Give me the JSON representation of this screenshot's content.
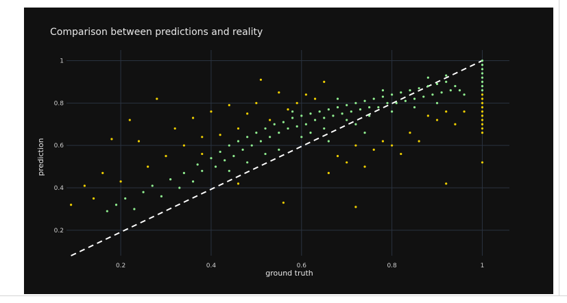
{
  "chart_data": {
    "type": "scatter",
    "title": "Comparison between predictions and reality",
    "xlabel": "ground truth",
    "ylabel": "prediction",
    "xlim": [
      0.08,
      1.06
    ],
    "ylim": [
      0.08,
      1.05
    ],
    "x_ticks": [
      0.2,
      0.4,
      0.6,
      0.8,
      1
    ],
    "y_ticks": [
      0.2,
      0.4,
      0.6,
      0.8,
      1
    ],
    "x_tick_labels": [
      "0.2",
      "0.4",
      "0.6",
      "0.8",
      "1"
    ],
    "y_tick_labels": [
      "0.2",
      "0.4",
      "0.6",
      "0.8",
      "1"
    ],
    "grid": true,
    "background": "#111111",
    "reference_line": {
      "style": "dashed",
      "color": "#ffffff",
      "from": [
        0.09,
        0.08
      ],
      "to": [
        1,
        1
      ]
    },
    "series": [
      {
        "color": "#90ee90",
        "points": [
          [
            0.17,
            0.29
          ],
          [
            0.19,
            0.32
          ],
          [
            0.21,
            0.35
          ],
          [
            0.23,
            0.3
          ],
          [
            0.25,
            0.38
          ],
          [
            0.27,
            0.41
          ],
          [
            0.29,
            0.36
          ],
          [
            0.31,
            0.44
          ],
          [
            0.33,
            0.4
          ],
          [
            0.34,
            0.47
          ],
          [
            0.36,
            0.43
          ],
          [
            0.37,
            0.51
          ],
          [
            0.38,
            0.48
          ],
          [
            0.4,
            0.54
          ],
          [
            0.41,
            0.5
          ],
          [
            0.42,
            0.57
          ],
          [
            0.43,
            0.53
          ],
          [
            0.44,
            0.6
          ],
          [
            0.45,
            0.55
          ],
          [
            0.46,
            0.62
          ],
          [
            0.47,
            0.58
          ],
          [
            0.48,
            0.64
          ],
          [
            0.49,
            0.6
          ],
          [
            0.5,
            0.66
          ],
          [
            0.51,
            0.62
          ],
          [
            0.52,
            0.68
          ],
          [
            0.53,
            0.64
          ],
          [
            0.54,
            0.7
          ],
          [
            0.55,
            0.66
          ],
          [
            0.56,
            0.71
          ],
          [
            0.57,
            0.68
          ],
          [
            0.58,
            0.73
          ],
          [
            0.59,
            0.69
          ],
          [
            0.6,
            0.74
          ],
          [
            0.61,
            0.7
          ],
          [
            0.62,
            0.75
          ],
          [
            0.63,
            0.72
          ],
          [
            0.64,
            0.76
          ],
          [
            0.65,
            0.73
          ],
          [
            0.66,
            0.77
          ],
          [
            0.67,
            0.74
          ],
          [
            0.68,
            0.78
          ],
          [
            0.69,
            0.75
          ],
          [
            0.7,
            0.79
          ],
          [
            0.71,
            0.76
          ],
          [
            0.72,
            0.8
          ],
          [
            0.73,
            0.77
          ],
          [
            0.74,
            0.81
          ],
          [
            0.75,
            0.78
          ],
          [
            0.76,
            0.82
          ],
          [
            0.77,
            0.78
          ],
          [
            0.78,
            0.83
          ],
          [
            0.79,
            0.8
          ],
          [
            0.8,
            0.84
          ],
          [
            0.81,
            0.8
          ],
          [
            0.82,
            0.85
          ],
          [
            0.83,
            0.81
          ],
          [
            0.84,
            0.86
          ],
          [
            0.85,
            0.82
          ],
          [
            0.86,
            0.87
          ],
          [
            0.87,
            0.83
          ],
          [
            0.88,
            0.88
          ],
          [
            0.89,
            0.84
          ],
          [
            0.9,
            0.89
          ],
          [
            0.91,
            0.85
          ],
          [
            0.92,
            0.9
          ],
          [
            0.93,
            0.86
          ],
          [
            0.94,
            0.88
          ],
          [
            0.95,
            0.86
          ],
          [
            0.96,
            0.84
          ],
          [
            0.55,
            0.58
          ],
          [
            0.6,
            0.64
          ],
          [
            0.65,
            0.68
          ],
          [
            0.7,
            0.72
          ],
          [
            0.75,
            0.74
          ],
          [
            0.8,
            0.76
          ],
          [
            0.85,
            0.78
          ],
          [
            0.9,
            0.8
          ],
          [
            0.62,
            0.66
          ],
          [
            0.72,
            0.7
          ],
          [
            0.58,
            0.76
          ],
          [
            0.68,
            0.82
          ],
          [
            0.78,
            0.86
          ],
          [
            0.88,
            0.92
          ],
          [
            0.92,
            0.93
          ],
          [
            0.48,
            0.52
          ],
          [
            0.44,
            0.48
          ],
          [
            0.52,
            0.56
          ],
          [
            0.74,
            0.66
          ],
          [
            0.66,
            0.62
          ],
          [
            1,
            1.0
          ],
          [
            1,
            0.98
          ],
          [
            1,
            0.96
          ],
          [
            1,
            0.94
          ],
          [
            1,
            0.92
          ],
          [
            1,
            0.9
          ],
          [
            1,
            0.88
          ],
          [
            1,
            0.86
          ]
        ]
      },
      {
        "color": "#f0d000",
        "points": [
          [
            0.09,
            0.32
          ],
          [
            0.12,
            0.41
          ],
          [
            0.14,
            0.35
          ],
          [
            0.16,
            0.47
          ],
          [
            0.18,
            0.63
          ],
          [
            0.2,
            0.43
          ],
          [
            0.22,
            0.72
          ],
          [
            0.24,
            0.62
          ],
          [
            0.26,
            0.5
          ],
          [
            0.28,
            0.82
          ],
          [
            0.3,
            0.55
          ],
          [
            0.32,
            0.68
          ],
          [
            0.34,
            0.6
          ],
          [
            0.36,
            0.73
          ],
          [
            0.38,
            0.64
          ],
          [
            0.4,
            0.76
          ],
          [
            0.42,
            0.65
          ],
          [
            0.44,
            0.79
          ],
          [
            0.46,
            0.68
          ],
          [
            0.48,
            0.75
          ],
          [
            0.5,
            0.8
          ],
          [
            0.51,
            0.91
          ],
          [
            0.53,
            0.72
          ],
          [
            0.55,
            0.85
          ],
          [
            0.57,
            0.77
          ],
          [
            0.59,
            0.8
          ],
          [
            0.61,
            0.84
          ],
          [
            0.63,
            0.82
          ],
          [
            0.65,
            0.9
          ],
          [
            0.66,
            0.47
          ],
          [
            0.68,
            0.55
          ],
          [
            0.7,
            0.52
          ],
          [
            0.72,
            0.6
          ],
          [
            0.74,
            0.5
          ],
          [
            0.76,
            0.58
          ],
          [
            0.78,
            0.62
          ],
          [
            0.8,
            0.6
          ],
          [
            0.82,
            0.56
          ],
          [
            0.84,
            0.66
          ],
          [
            0.86,
            0.62
          ],
          [
            0.88,
            0.74
          ],
          [
            0.9,
            0.72
          ],
          [
            0.92,
            0.76
          ],
          [
            0.94,
            0.7
          ],
          [
            0.96,
            0.76
          ],
          [
            0.92,
            0.42
          ],
          [
            0.72,
            0.31
          ],
          [
            0.56,
            0.33
          ],
          [
            0.46,
            0.42
          ],
          [
            0.38,
            0.56
          ],
          [
            1,
            0.84
          ],
          [
            1,
            0.82
          ],
          [
            1,
            0.8
          ],
          [
            1,
            0.78
          ],
          [
            1,
            0.76
          ],
          [
            1,
            0.74
          ],
          [
            1,
            0.72
          ],
          [
            1,
            0.7
          ],
          [
            1,
            0.68
          ],
          [
            1,
            0.66
          ],
          [
            1,
            0.52
          ]
        ]
      }
    ]
  }
}
